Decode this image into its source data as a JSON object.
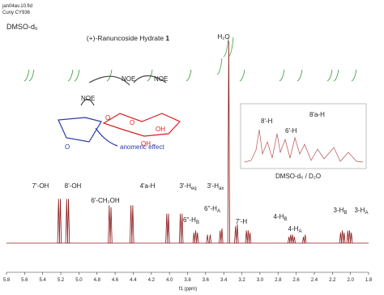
{
  "chart_data": {
    "type": "nmr",
    "file": "jan04av.10.fid",
    "sample": "Cuny CY936",
    "solvent": "DMSO-d₆",
    "title": "(+)-Ranuncoside Hydrate ",
    "title_number": "1",
    "x_label": "f1 (ppm)",
    "xlim": [
      5.8,
      1.8
    ],
    "xticks": [
      5.8,
      5.6,
      5.4,
      5.2,
      {
        "value": 5,
        "label": "5.0"
      },
      4.8,
      4.6,
      4.4,
      4.2,
      {
        "value": 4,
        "label": "4.0"
      },
      3.8,
      3.6,
      3.4,
      3.2,
      {
        "value": 3,
        "label": "3.0"
      },
      2.8,
      2.6,
      2.4,
      2.2,
      {
        "value": 2,
        "label": "2.0"
      },
      1.8
    ],
    "ylim": [
      0,
      100
    ],
    "color": "#8b1a1a",
    "x": [
      5.225,
      5.205,
      5.135,
      5.115,
      4.665,
      4.645,
      4.425,
      4.405,
      4.03,
      4.01,
      3.88,
      3.86,
      3.73,
      3.71,
      3.69,
      3.58,
      3.55,
      3.44,
      3.42,
      3.345,
      3.27,
      3.25,
      3.15,
      3.13,
      3.11,
      2.68,
      2.66,
      2.64,
      2.62,
      2.52,
      2.5,
      2.11,
      2.09,
      2.07,
      2.03,
      2.01,
      1.99
    ],
    "values": [
      21,
      21,
      21,
      21,
      18,
      17,
      18,
      18,
      14,
      14,
      14,
      14,
      5,
      6,
      5,
      4,
      4,
      6,
      7,
      96,
      8,
      9,
      6,
      6,
      5,
      3,
      4,
      4,
      3,
      3,
      4,
      5,
      6,
      5,
      6,
      6,
      5
    ],
    "peak_labels": [
      {
        "text": "7'-OH"
      },
      {
        "text": "8'-OH"
      },
      {
        "text": "6'-CH₂OH"
      },
      {
        "text": "4'a-H"
      },
      {
        "text": "3'-H",
        "sub": "eq"
      },
      {
        "text": "3'-H",
        "sub": "ax"
      },
      {
        "text": "6''-H",
        "sub": "B"
      },
      {
        "text": "6''-H",
        "sub": "A"
      },
      {
        "text": "7'-H"
      },
      {
        "text": "4-H",
        "sub": "B"
      },
      {
        "text": "4-H",
        "sub": "A"
      },
      {
        "text": "3-H",
        "sub": "B"
      },
      {
        "text": "3-H",
        "sub": "A"
      },
      {
        "text": "H₂O"
      }
    ],
    "structure": {
      "noe": [
        "NOE",
        "NOE",
        "NOE"
      ],
      "anomeric": "anomeric effect",
      "atoms": [
        "O",
        "O",
        "O",
        "OH",
        "OH"
      ]
    },
    "inset": {
      "labels": [
        "8'-H",
        "6'-H",
        "8'a-H"
      ],
      "caption": "DMSO-d₆ / D₂O"
    }
  }
}
